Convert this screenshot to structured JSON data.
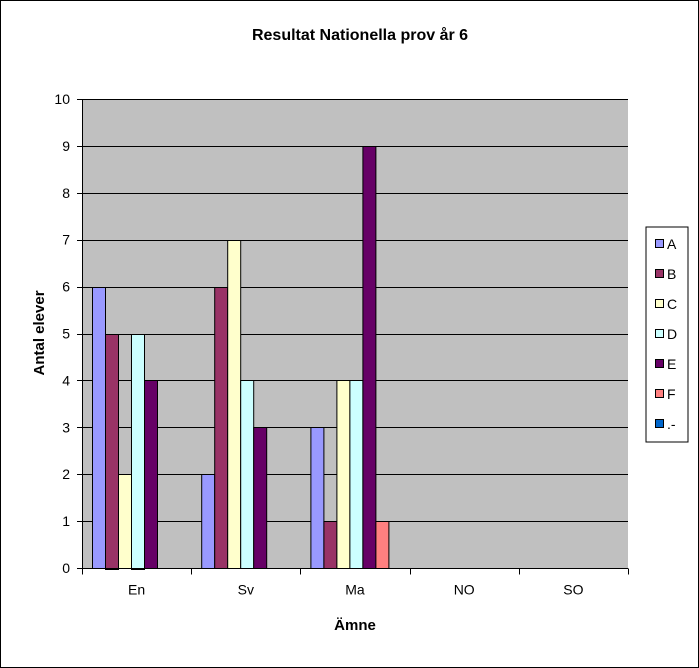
{
  "chart_data": {
    "type": "bar",
    "title": "Resultat Nationella prov år 6",
    "xlabel": "Ämne",
    "ylabel": "Antal elever",
    "ylim": [
      0,
      10
    ],
    "yticks": [
      "0",
      "1",
      "2",
      "3",
      "4",
      "5",
      "6",
      "7",
      "8",
      "9",
      "10"
    ],
    "categories": [
      "En",
      "Sv",
      "Ma",
      "NO",
      "SO"
    ],
    "grid": true,
    "legend_position": "right",
    "series": [
      {
        "name": "A",
        "color": "#9999FF",
        "values": [
          6,
          2,
          3,
          0,
          0
        ]
      },
      {
        "name": "B",
        "color": "#993366",
        "values": [
          5,
          6,
          1,
          0,
          0
        ]
      },
      {
        "name": "C",
        "color": "#FFFFCC",
        "values": [
          2,
          7,
          4,
          0,
          0
        ]
      },
      {
        "name": "D",
        "color": "#CCFFFF",
        "values": [
          5,
          4,
          4,
          0,
          0
        ]
      },
      {
        "name": "E",
        "color": "#660066",
        "values": [
          4,
          3,
          9,
          0,
          0
        ]
      },
      {
        "name": "F",
        "color": "#FF8080",
        "values": [
          0,
          0,
          1,
          0,
          0
        ]
      },
      {
        "name": ".-",
        "color": "#0066CC",
        "values": [
          0,
          0,
          0,
          0,
          0
        ]
      }
    ],
    "plot_background": "#C0C0C0"
  }
}
